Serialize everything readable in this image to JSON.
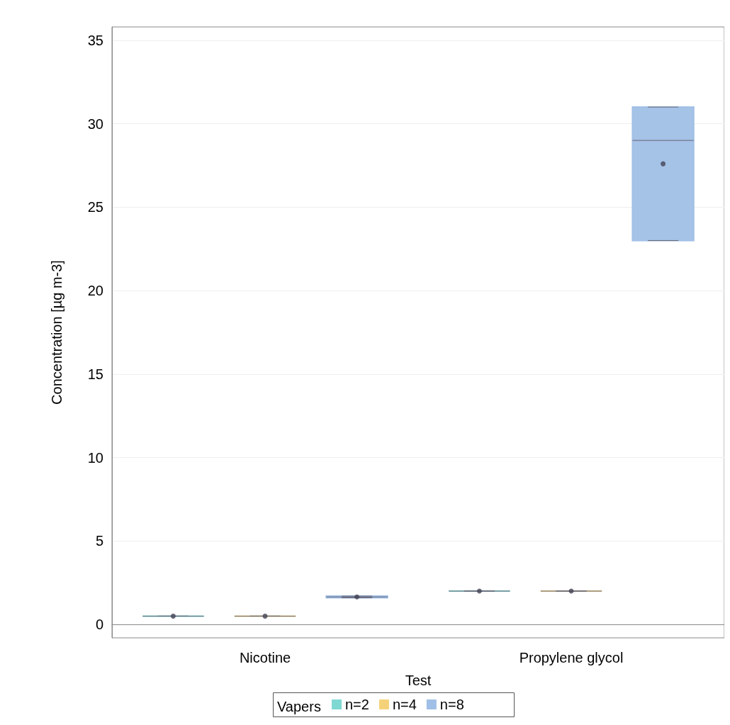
{
  "chart_data": {
    "type": "box",
    "xlabel": "Test",
    "ylabel": "Concentration [µg m-3]",
    "legend_title": "Vapers",
    "categories": [
      "Nicotine",
      "Propylene glycol"
    ],
    "ylim": [
      -0.8,
      35.8
    ],
    "yticks": [
      0,
      5,
      10,
      15,
      20,
      25,
      30,
      35
    ],
    "grid": "y",
    "legend": "bottom",
    "series": [
      {
        "name": "n=2",
        "color": "#7fd8d2",
        "boxes": [
          {
            "low": 0.5,
            "q1": 0.5,
            "median": 0.5,
            "q3": 0.5,
            "high": 0.5,
            "mean": 0.5
          },
          {
            "low": 2,
            "q1": 2,
            "median": 2,
            "q3": 2,
            "high": 2,
            "mean": 2
          }
        ]
      },
      {
        "name": "n=4",
        "color": "#f5d27a",
        "boxes": [
          {
            "low": 0.5,
            "q1": 0.5,
            "median": 0.5,
            "q3": 0.5,
            "high": 0.5,
            "mean": 0.5
          },
          {
            "low": 2,
            "q1": 2,
            "median": 2,
            "q3": 2,
            "high": 2,
            "mean": 2
          }
        ]
      },
      {
        "name": "n=8",
        "color": "#a0bfe6",
        "boxes": [
          {
            "low": 1.6,
            "q1": 1.6,
            "median": 1.65,
            "q3": 1.7,
            "high": 1.7,
            "mean": 1.65
          },
          {
            "low": 23,
            "q1": 23,
            "median": 29,
            "q3": 31,
            "high": 31,
            "mean": 27.6
          }
        ]
      }
    ]
  }
}
